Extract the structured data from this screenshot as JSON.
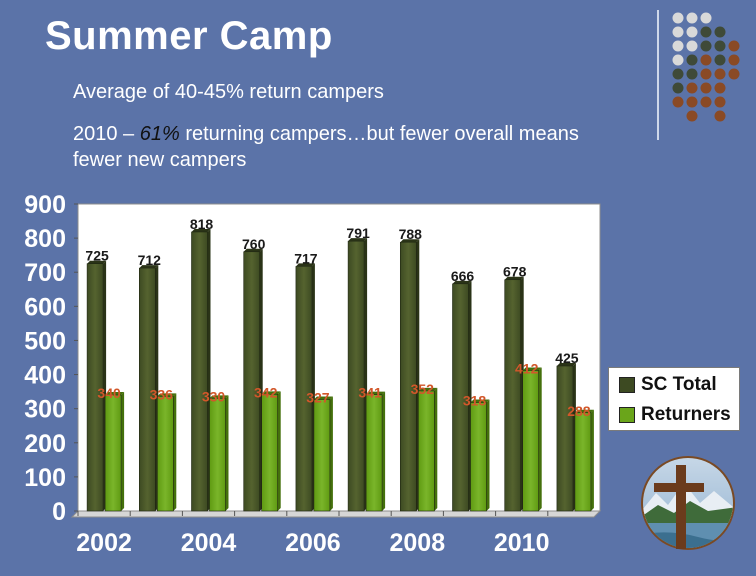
{
  "slide": {
    "title": "Summer Camp",
    "bullet1": "Average of 40-45% return campers",
    "bullet2_prefix": "2010 – ",
    "bullet2_em": "61%",
    "bullet2_suffix": " returning campers…but fewer overall means fewer new campers"
  },
  "chart_data": {
    "type": "bar",
    "categories": [
      "2002",
      "2003",
      "2004",
      "2005",
      "2006",
      "2007",
      "2008",
      "2009",
      "2010",
      "2011"
    ],
    "x_tick_labels": [
      "2002",
      "2004",
      "2006",
      "2008",
      "2010"
    ],
    "series": [
      {
        "name": "SC Total",
        "values": [
          725,
          712,
          818,
          760,
          717,
          791,
          788,
          666,
          678,
          425
        ]
      },
      {
        "name": "Returners",
        "values": [
          340,
          336,
          330,
          342,
          327,
          341,
          352,
          318,
          412,
          288
        ]
      }
    ],
    "ylim": [
      0,
      900
    ],
    "yticks": [
      0,
      100,
      200,
      300,
      400,
      500,
      600,
      700,
      800,
      900
    ],
    "grid": false,
    "legend": "right",
    "colors": {
      "total": "#3d4a22",
      "total_light": "#55632f",
      "returners": "#5f9a12",
      "returners_light": "#7ab52a",
      "returner_label": "#d2572a",
      "total_label": "#1a1a1a"
    }
  }
}
